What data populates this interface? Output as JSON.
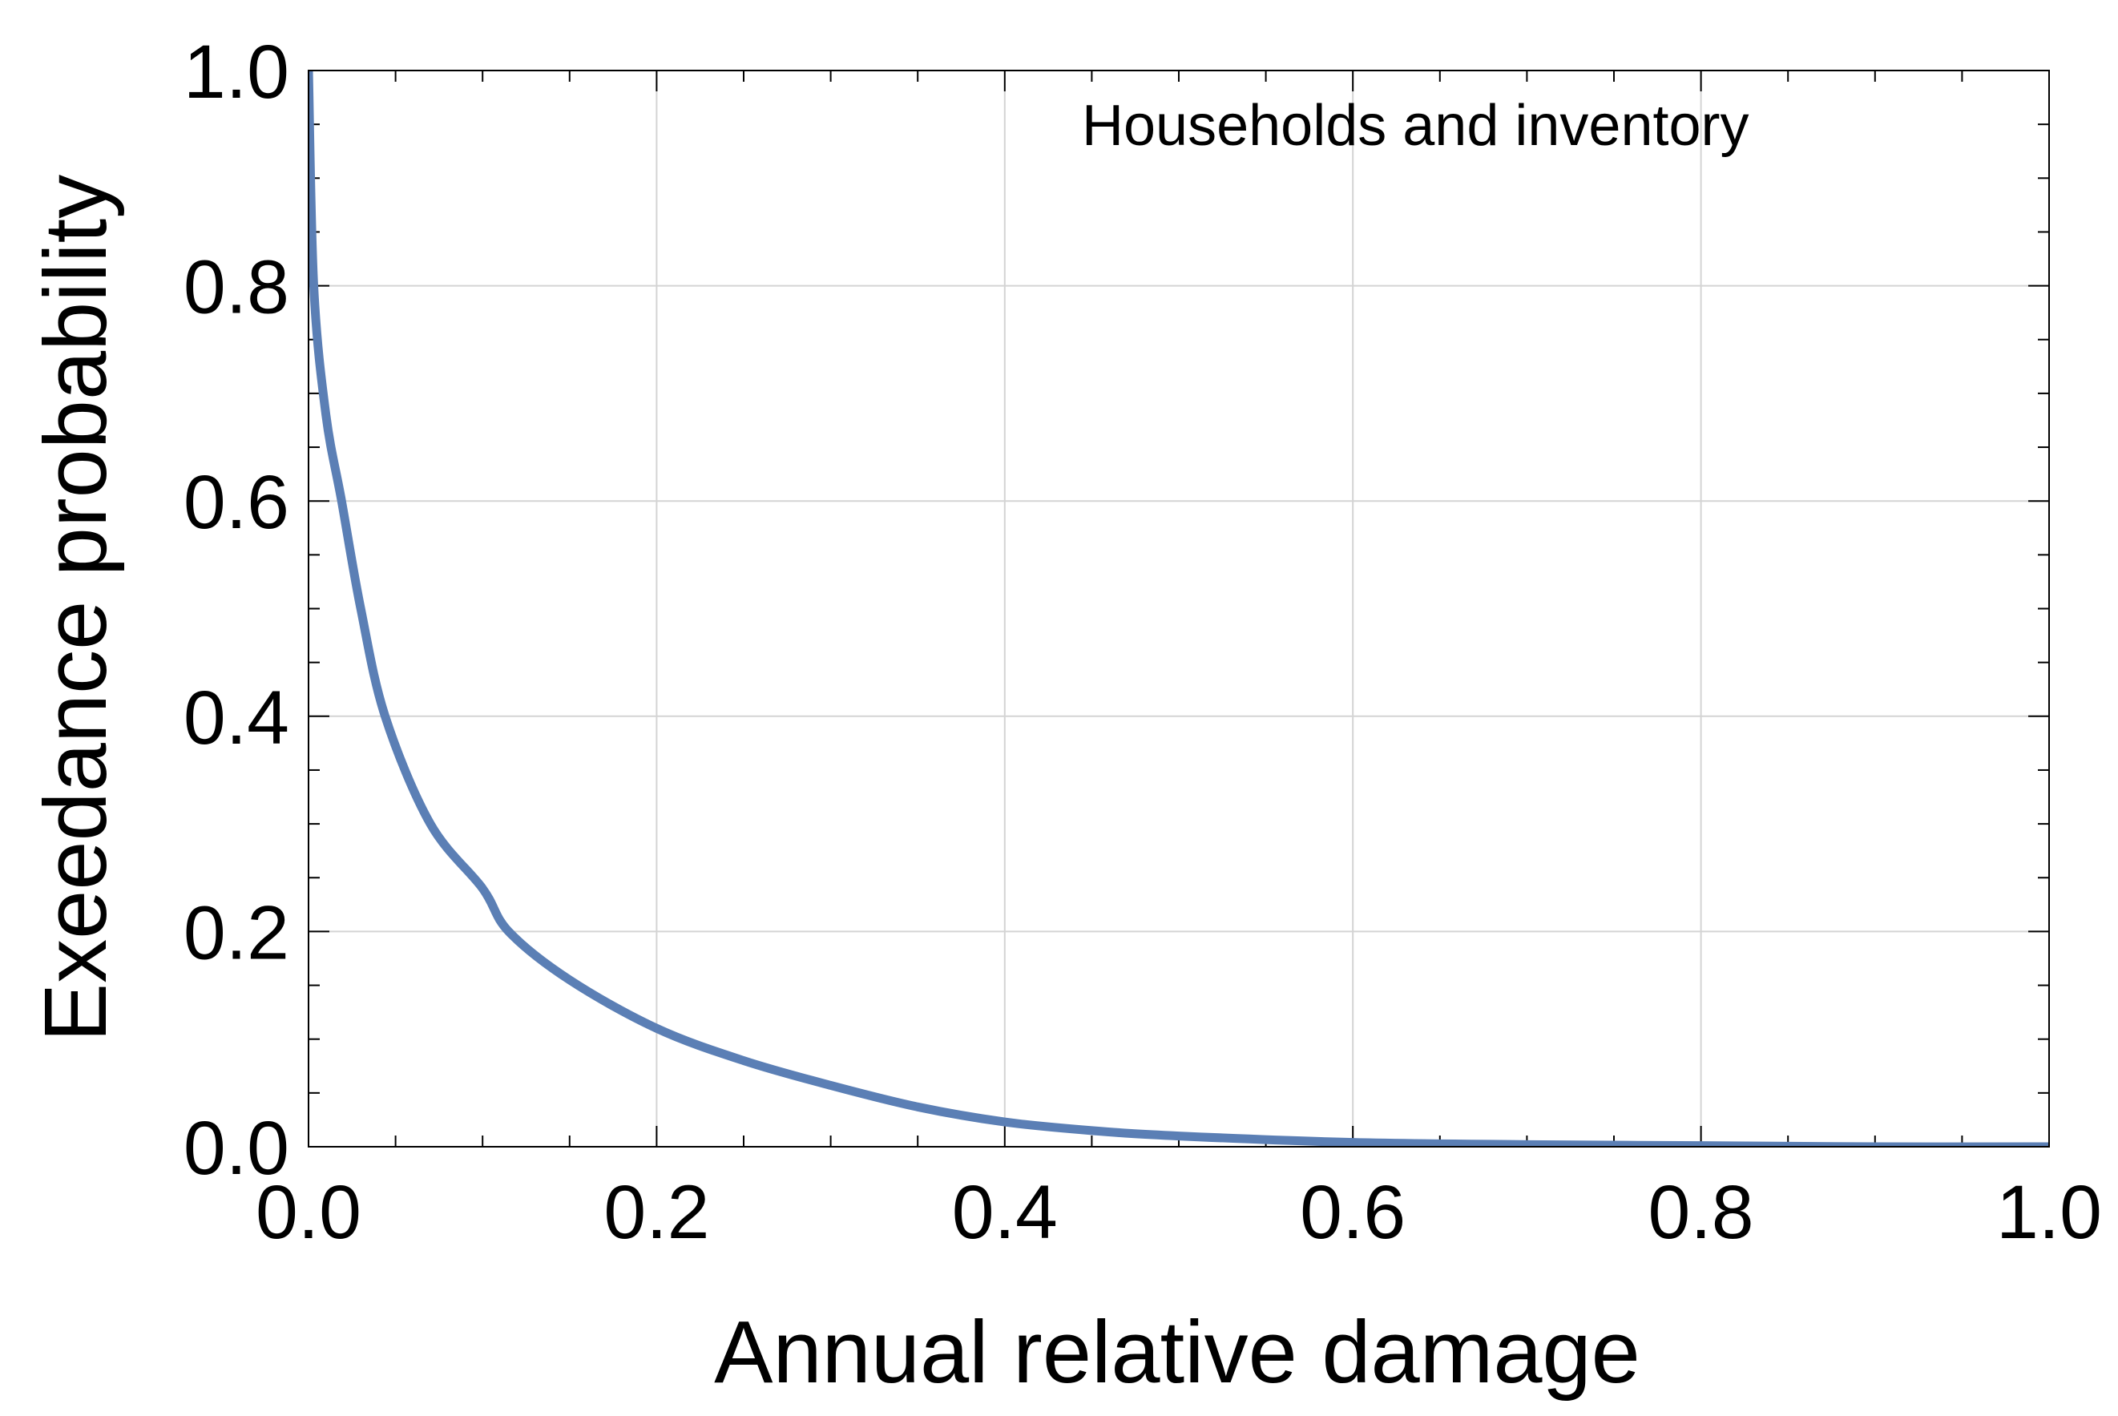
{
  "chart_data": {
    "type": "line",
    "title": "",
    "annotation": "Households and inventory",
    "xlabel": "Annual relative damage",
    "ylabel": "Exeedance probability",
    "xlim": [
      0,
      1
    ],
    "ylim": [
      0,
      1
    ],
    "grid": true,
    "x_ticks": [
      "0.0",
      "0.2",
      "0.4",
      "0.6",
      "0.8",
      "1.0"
    ],
    "y_ticks": [
      "0.0",
      "0.2",
      "0.4",
      "0.6",
      "0.8",
      "1.0"
    ],
    "series_color": "#5b7fb5",
    "series": [
      {
        "x": [
          0,
          0.003,
          0.01,
          0.019,
          0.03,
          0.044,
          0.07,
          0.1,
          0.115,
          0.15,
          0.2,
          0.25,
          0.3,
          0.35,
          0.4,
          0.45,
          0.5,
          0.6,
          0.7,
          0.8,
          0.9,
          1.0
        ],
        "y": [
          1.0,
          0.8,
          0.68,
          0.6,
          0.5,
          0.4,
          0.3,
          0.24,
          0.2,
          0.155,
          0.11,
          0.08,
          0.057,
          0.037,
          0.023,
          0.015,
          0.01,
          0.004,
          0.002,
          0.001,
          0.0,
          0.0
        ]
      }
    ]
  }
}
